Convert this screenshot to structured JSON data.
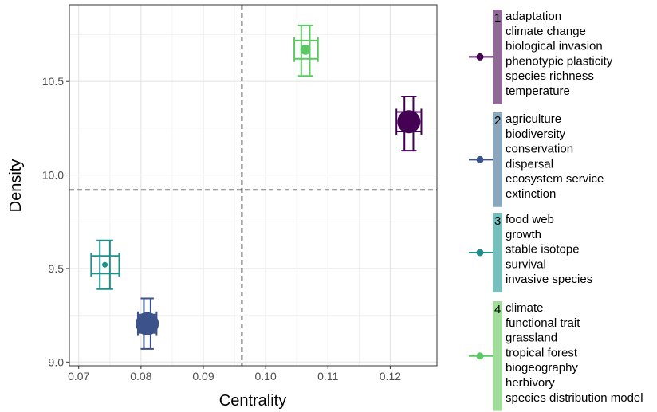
{
  "chart_data": {
    "type": "scatter",
    "xlabel": "Centrality",
    "ylabel": "Density",
    "xlim": [
      0.0685,
      0.1275
    ],
    "ylim": [
      8.98,
      10.91
    ],
    "x_ticks": [
      0.07,
      0.08,
      0.09,
      0.1,
      0.11,
      0.12
    ],
    "x_tick_labels": [
      "0.07",
      "0.08",
      "0.09",
      "0.10",
      "0.11",
      "0.12"
    ],
    "y_ticks": [
      9.0,
      9.5,
      10.0,
      10.5
    ],
    "y_tick_labels": [
      "9.0",
      "9.5",
      "10.0",
      "10.5"
    ],
    "grid": true,
    "reference_lines": {
      "x": 0.0962,
      "y": 9.92
    },
    "legend_position": "right",
    "clusters": [
      {
        "id": "1",
        "color": "#440154",
        "legend_color": "#8f6a96",
        "x": 0.123,
        "y": 10.285,
        "x_err": [
          0.121,
          0.125
        ],
        "y_err": [
          10.13,
          10.42
        ],
        "size": 6,
        "terms": [
          "adaptation",
          "climate change",
          "biological invasion",
          "phenotypic plasticity",
          "species richness",
          "temperature"
        ]
      },
      {
        "id": "2",
        "color": "#3b528b",
        "legend_color": "#8ba7bd",
        "x": 0.081,
        "y": 9.205,
        "x_err": [
          0.0795,
          0.0825
        ],
        "y_err": [
          9.07,
          9.34
        ],
        "size": 6,
        "terms": [
          "agriculture",
          "biodiversity",
          "conservation",
          "dispersal",
          "ecosystem service",
          "extinction"
        ]
      },
      {
        "id": "3",
        "color": "#21908d",
        "legend_color": "#75c0bd",
        "x": 0.0742,
        "y": 9.52,
        "x_err": [
          0.072,
          0.0765
        ],
        "y_err": [
          9.39,
          9.65
        ],
        "size": 5,
        "terms": [
          "food web",
          "growth",
          "stable isotope",
          "survival",
          "invasive species"
        ]
      },
      {
        "id": "4",
        "color": "#5dc863",
        "legend_color": "#a0dc9a",
        "x": 0.1064,
        "y": 10.67,
        "x_err": [
          0.1046,
          0.1084
        ],
        "y_err": [
          10.53,
          10.8
        ],
        "size": 7,
        "terms": [
          "climate",
          "functional trait",
          "grassland",
          "tropical forest",
          "biogeography",
          "herbivory",
          "species distribution model"
        ]
      }
    ]
  }
}
